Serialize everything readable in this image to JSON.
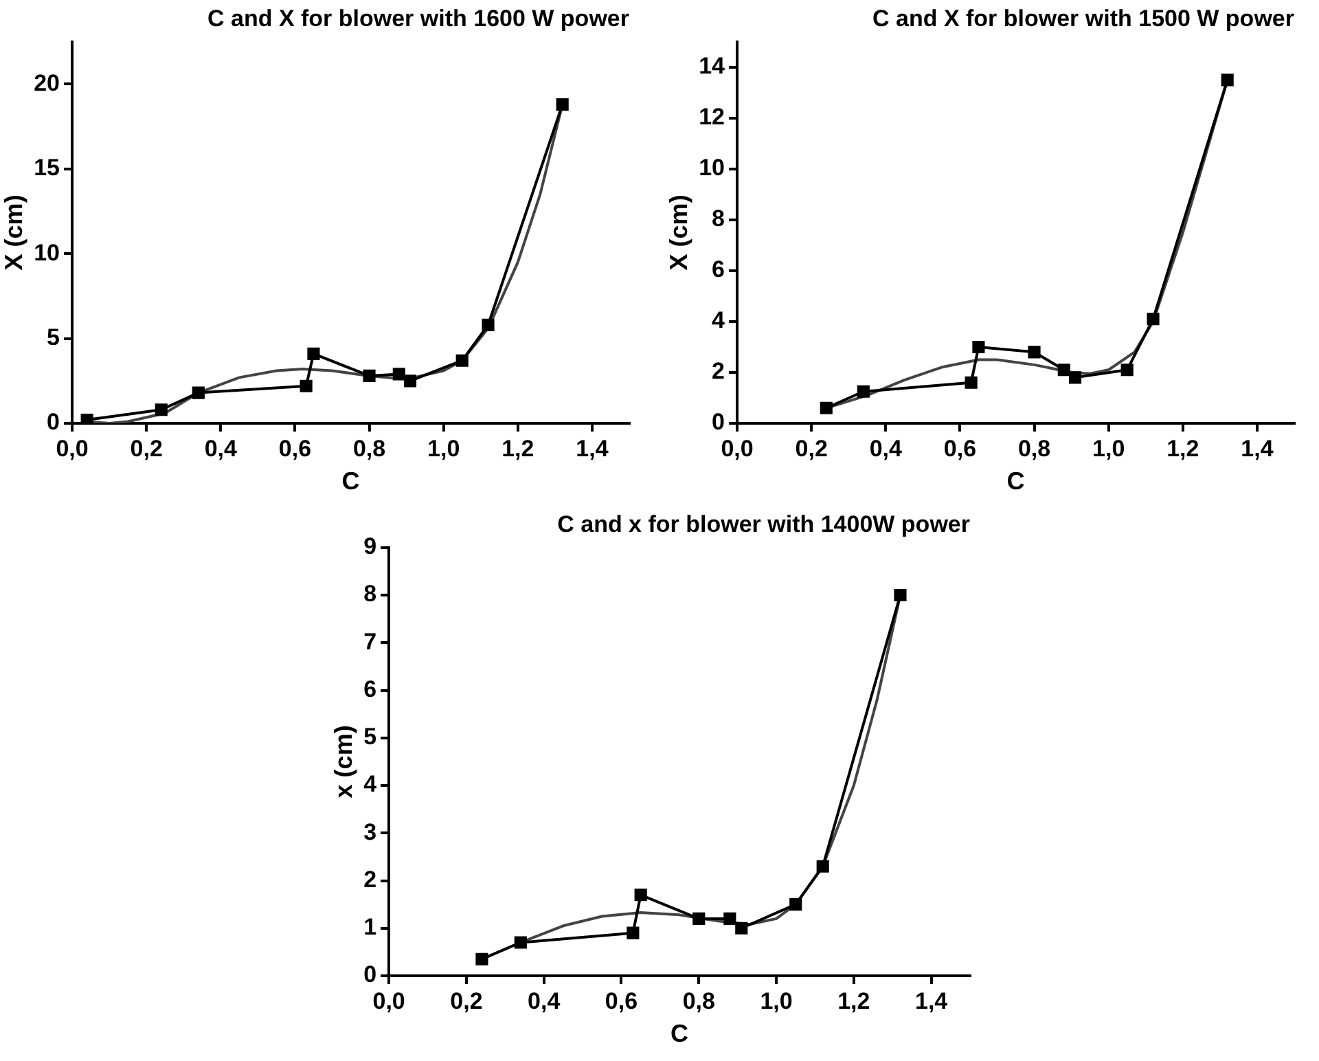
{
  "chart_data": [
    {
      "type": "line",
      "title": "C and X for blower with 1600 W power",
      "xlabel": "C",
      "ylabel": "X (cm)",
      "xlim": [
        0,
        1.5
      ],
      "ylim": [
        0,
        22.5
      ],
      "xticks": [
        {
          "value": 0,
          "label": "0,0"
        },
        {
          "value": 0.2,
          "label": "0,2"
        },
        {
          "value": 0.4,
          "label": "0,4"
        },
        {
          "value": 0.6,
          "label": "0,6"
        },
        {
          "value": 0.8,
          "label": "0,8"
        },
        {
          "value": 1,
          "label": "1,0"
        },
        {
          "value": 1.2,
          "label": "1,2"
        },
        {
          "value": 1.4,
          "label": "1,4"
        }
      ],
      "yticks": [
        0,
        5,
        10,
        15,
        20
      ],
      "grid": false,
      "legend": false,
      "marker": "square",
      "line_style": "solid",
      "series": [
        {
          "color": "#000000",
          "x": [
            0.04,
            0.24,
            0.34,
            0.63,
            0.65,
            0.8,
            0.88,
            0.91,
            1.05,
            1.12,
            1.32
          ],
          "values": [
            0.2,
            0.8,
            1.8,
            2.2,
            4.1,
            2.8,
            2.9,
            2.5,
            3.7,
            5.8,
            18.8
          ]
        },
        {
          "type": "line",
          "marker": "none",
          "color": "#444444",
          "x": [
            0.04,
            0.1,
            0.15,
            0.25,
            0.34,
            0.45,
            0.55,
            0.62,
            0.7,
            0.8,
            0.9,
            1.0,
            1.05,
            1.12,
            1.2,
            1.26,
            1.32
          ],
          "values": [
            0.1,
            0,
            0.1,
            0.6,
            1.8,
            2.7,
            3.1,
            3.2,
            3.1,
            2.8,
            2.6,
            3.1,
            3.7,
            5.6,
            9.5,
            13.5,
            18.8
          ]
        }
      ]
    },
    {
      "type": "line",
      "title": "C and X for blower with 1500 W power",
      "xlabel": "C",
      "ylabel": "X (cm)",
      "xlim": [
        0,
        1.5
      ],
      "ylim": [
        0,
        15
      ],
      "xticks": [
        {
          "value": 0,
          "label": "0,0"
        },
        {
          "value": 0.2,
          "label": "0,2"
        },
        {
          "value": 0.4,
          "label": "0,4"
        },
        {
          "value": 0.6,
          "label": "0,6"
        },
        {
          "value": 0.8,
          "label": "0,8"
        },
        {
          "value": 1,
          "label": "1,0"
        },
        {
          "value": 1.2,
          "label": "1,2"
        },
        {
          "value": 1.4,
          "label": "1,4"
        }
      ],
      "yticks": [
        0,
        2,
        4,
        6,
        8,
        10,
        12,
        14
      ],
      "grid": false,
      "legend": false,
      "marker": "square",
      "line_style": "solid",
      "series": [
        {
          "color": "#000000",
          "x": [
            0.24,
            0.34,
            0.63,
            0.65,
            0.8,
            0.88,
            0.91,
            1.05,
            1.12,
            1.32
          ],
          "values": [
            0.6,
            1.25,
            1.6,
            3.0,
            2.8,
            2.1,
            1.8,
            2.1,
            4.1,
            13.5
          ]
        },
        {
          "type": "line",
          "marker": "none",
          "color": "#444444",
          "x": [
            0.24,
            0.35,
            0.45,
            0.55,
            0.65,
            0.7,
            0.8,
            0.9,
            0.95,
            1.0,
            1.07,
            1.12,
            1.2,
            1.26,
            1.32
          ],
          "values": [
            0.6,
            1.1,
            1.7,
            2.2,
            2.5,
            2.5,
            2.3,
            2.0,
            1.95,
            2.1,
            2.8,
            4.0,
            7.5,
            10.5,
            13.5
          ]
        }
      ]
    },
    {
      "type": "line",
      "title": "C and x for blower with 1400W power",
      "xlabel": "C",
      "ylabel": "x (cm)",
      "xlim": [
        0,
        1.5
      ],
      "ylim": [
        0,
        9
      ],
      "xticks": [
        {
          "value": 0,
          "label": "0,0"
        },
        {
          "value": 0.2,
          "label": "0,2"
        },
        {
          "value": 0.4,
          "label": "0,4"
        },
        {
          "value": 0.6,
          "label": "0,6"
        },
        {
          "value": 0.8,
          "label": "0,8"
        },
        {
          "value": 1,
          "label": "1,0"
        },
        {
          "value": 1.2,
          "label": "1,2"
        },
        {
          "value": 1.4,
          "label": "1,4"
        }
      ],
      "yticks": [
        0,
        1,
        2,
        3,
        4,
        5,
        6,
        7,
        8,
        9
      ],
      "grid": false,
      "legend": false,
      "marker": "square",
      "line_style": "solid",
      "series": [
        {
          "color": "#000000",
          "x": [
            0.24,
            0.34,
            0.63,
            0.65,
            0.8,
            0.88,
            0.91,
            1.05,
            1.12,
            1.32
          ],
          "values": [
            0.35,
            0.7,
            0.9,
            1.7,
            1.2,
            1.2,
            1.0,
            1.5,
            2.3,
            8.0
          ]
        },
        {
          "type": "line",
          "marker": "none",
          "color": "#444444",
          "x": [
            0.24,
            0.34,
            0.45,
            0.55,
            0.65,
            0.75,
            0.85,
            0.93,
            1.0,
            1.05,
            1.12,
            1.2,
            1.26,
            1.32
          ],
          "values": [
            0.35,
            0.7,
            1.05,
            1.25,
            1.33,
            1.28,
            1.15,
            1.08,
            1.2,
            1.5,
            2.3,
            4.0,
            5.8,
            8.0
          ]
        }
      ]
    }
  ]
}
